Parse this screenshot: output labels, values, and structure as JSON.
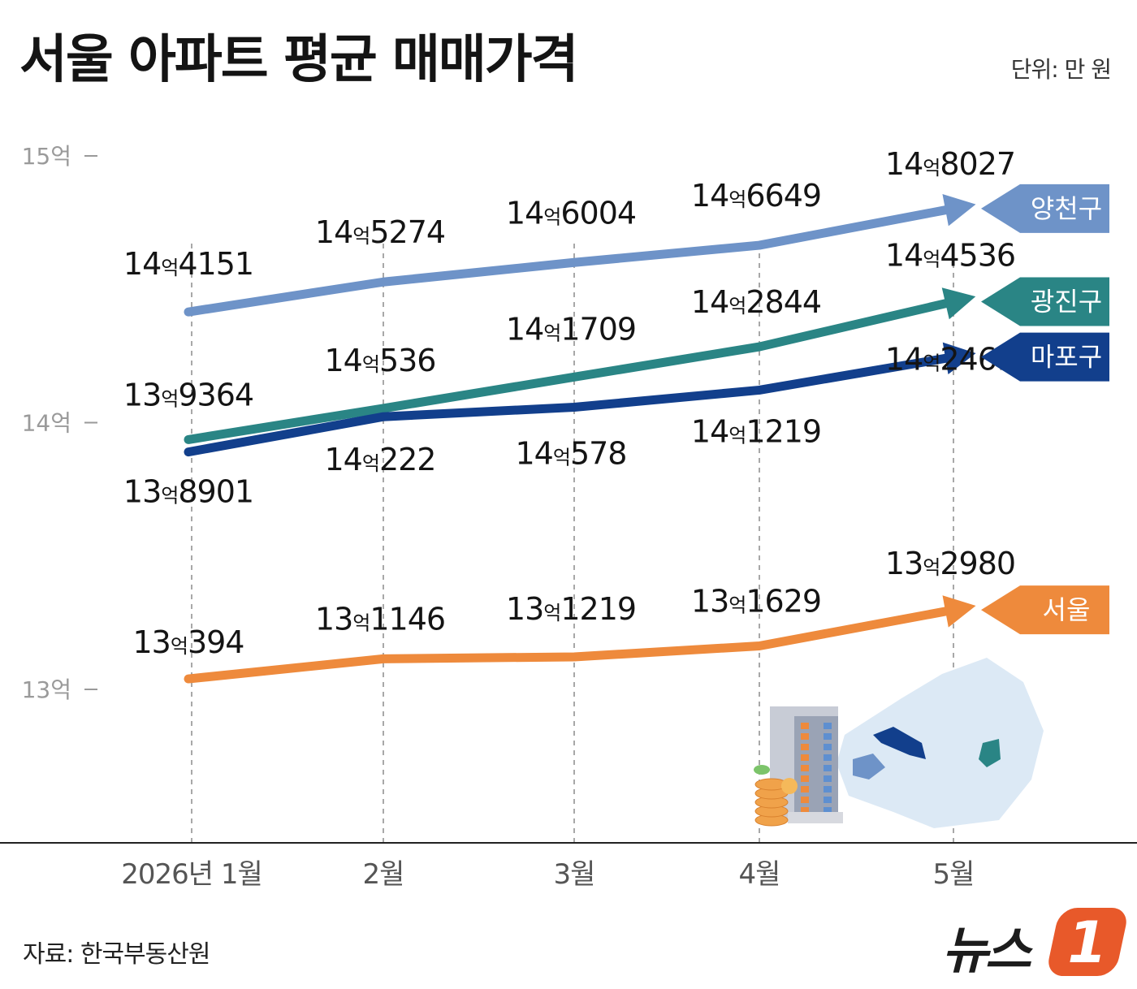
{
  "title": "서울 아파트 평균 매매가격",
  "unit": "단위: 만 원",
  "source": "자료: 한국부동산원",
  "logo": {
    "text": "뉴스",
    "mark": "1"
  },
  "chart_data": {
    "type": "line",
    "title": "서울 아파트 평균 매매가격",
    "unit": "만 원",
    "categories": [
      "2026년 1월",
      "2월",
      "3월",
      "4월",
      "5월"
    ],
    "ylim": [
      128000,
      152000
    ],
    "yticks": [
      {
        "value": 130000,
        "label": "13억"
      },
      {
        "value": 140000,
        "label": "14억"
      },
      {
        "value": 150000,
        "label": "15억"
      }
    ],
    "grid": "vertical dashed",
    "legend": "right (arrow tags)",
    "series": [
      {
        "name": "양천구",
        "color": "#6e93c8",
        "values": [
          144151,
          145274,
          146004,
          146649,
          148027
        ],
        "labels": [
          [
            "14",
            "억",
            "4151"
          ],
          [
            "14",
            "억",
            "5274"
          ],
          [
            "14",
            "억",
            "6004"
          ],
          [
            "14",
            "억",
            "6649"
          ],
          [
            "14",
            "억",
            "8027"
          ]
        ]
      },
      {
        "name": "광진구",
        "color": "#2a8585",
        "values": [
          139364,
          140536,
          141709,
          142844,
          144536
        ],
        "labels": [
          [
            "13",
            "억",
            "9364"
          ],
          [
            "14",
            "억",
            "536"
          ],
          [
            "14",
            "억",
            "1709"
          ],
          [
            "14",
            "억",
            "2844"
          ],
          [
            "14",
            "억",
            "4536"
          ]
        ]
      },
      {
        "name": "마포구",
        "color": "#123f8c",
        "values": [
          138901,
          140222,
          140578,
          141219,
          142461
        ],
        "labels": [
          [
            "13",
            "억",
            "8901"
          ],
          [
            "14",
            "억",
            "222"
          ],
          [
            "14",
            "억",
            "578"
          ],
          [
            "14",
            "억",
            "1219"
          ],
          [
            "14",
            "억",
            "2461"
          ]
        ]
      },
      {
        "name": "서울",
        "color": "#ee8a3c",
        "values": [
          130394,
          131146,
          131219,
          131629,
          132980
        ],
        "labels": [
          [
            "13",
            "억",
            "394"
          ],
          [
            "13",
            "억",
            "1146"
          ],
          [
            "13",
            "억",
            "1219"
          ],
          [
            "13",
            "억",
            "1629"
          ],
          [
            "13",
            "억",
            "2980"
          ]
        ]
      }
    ]
  }
}
